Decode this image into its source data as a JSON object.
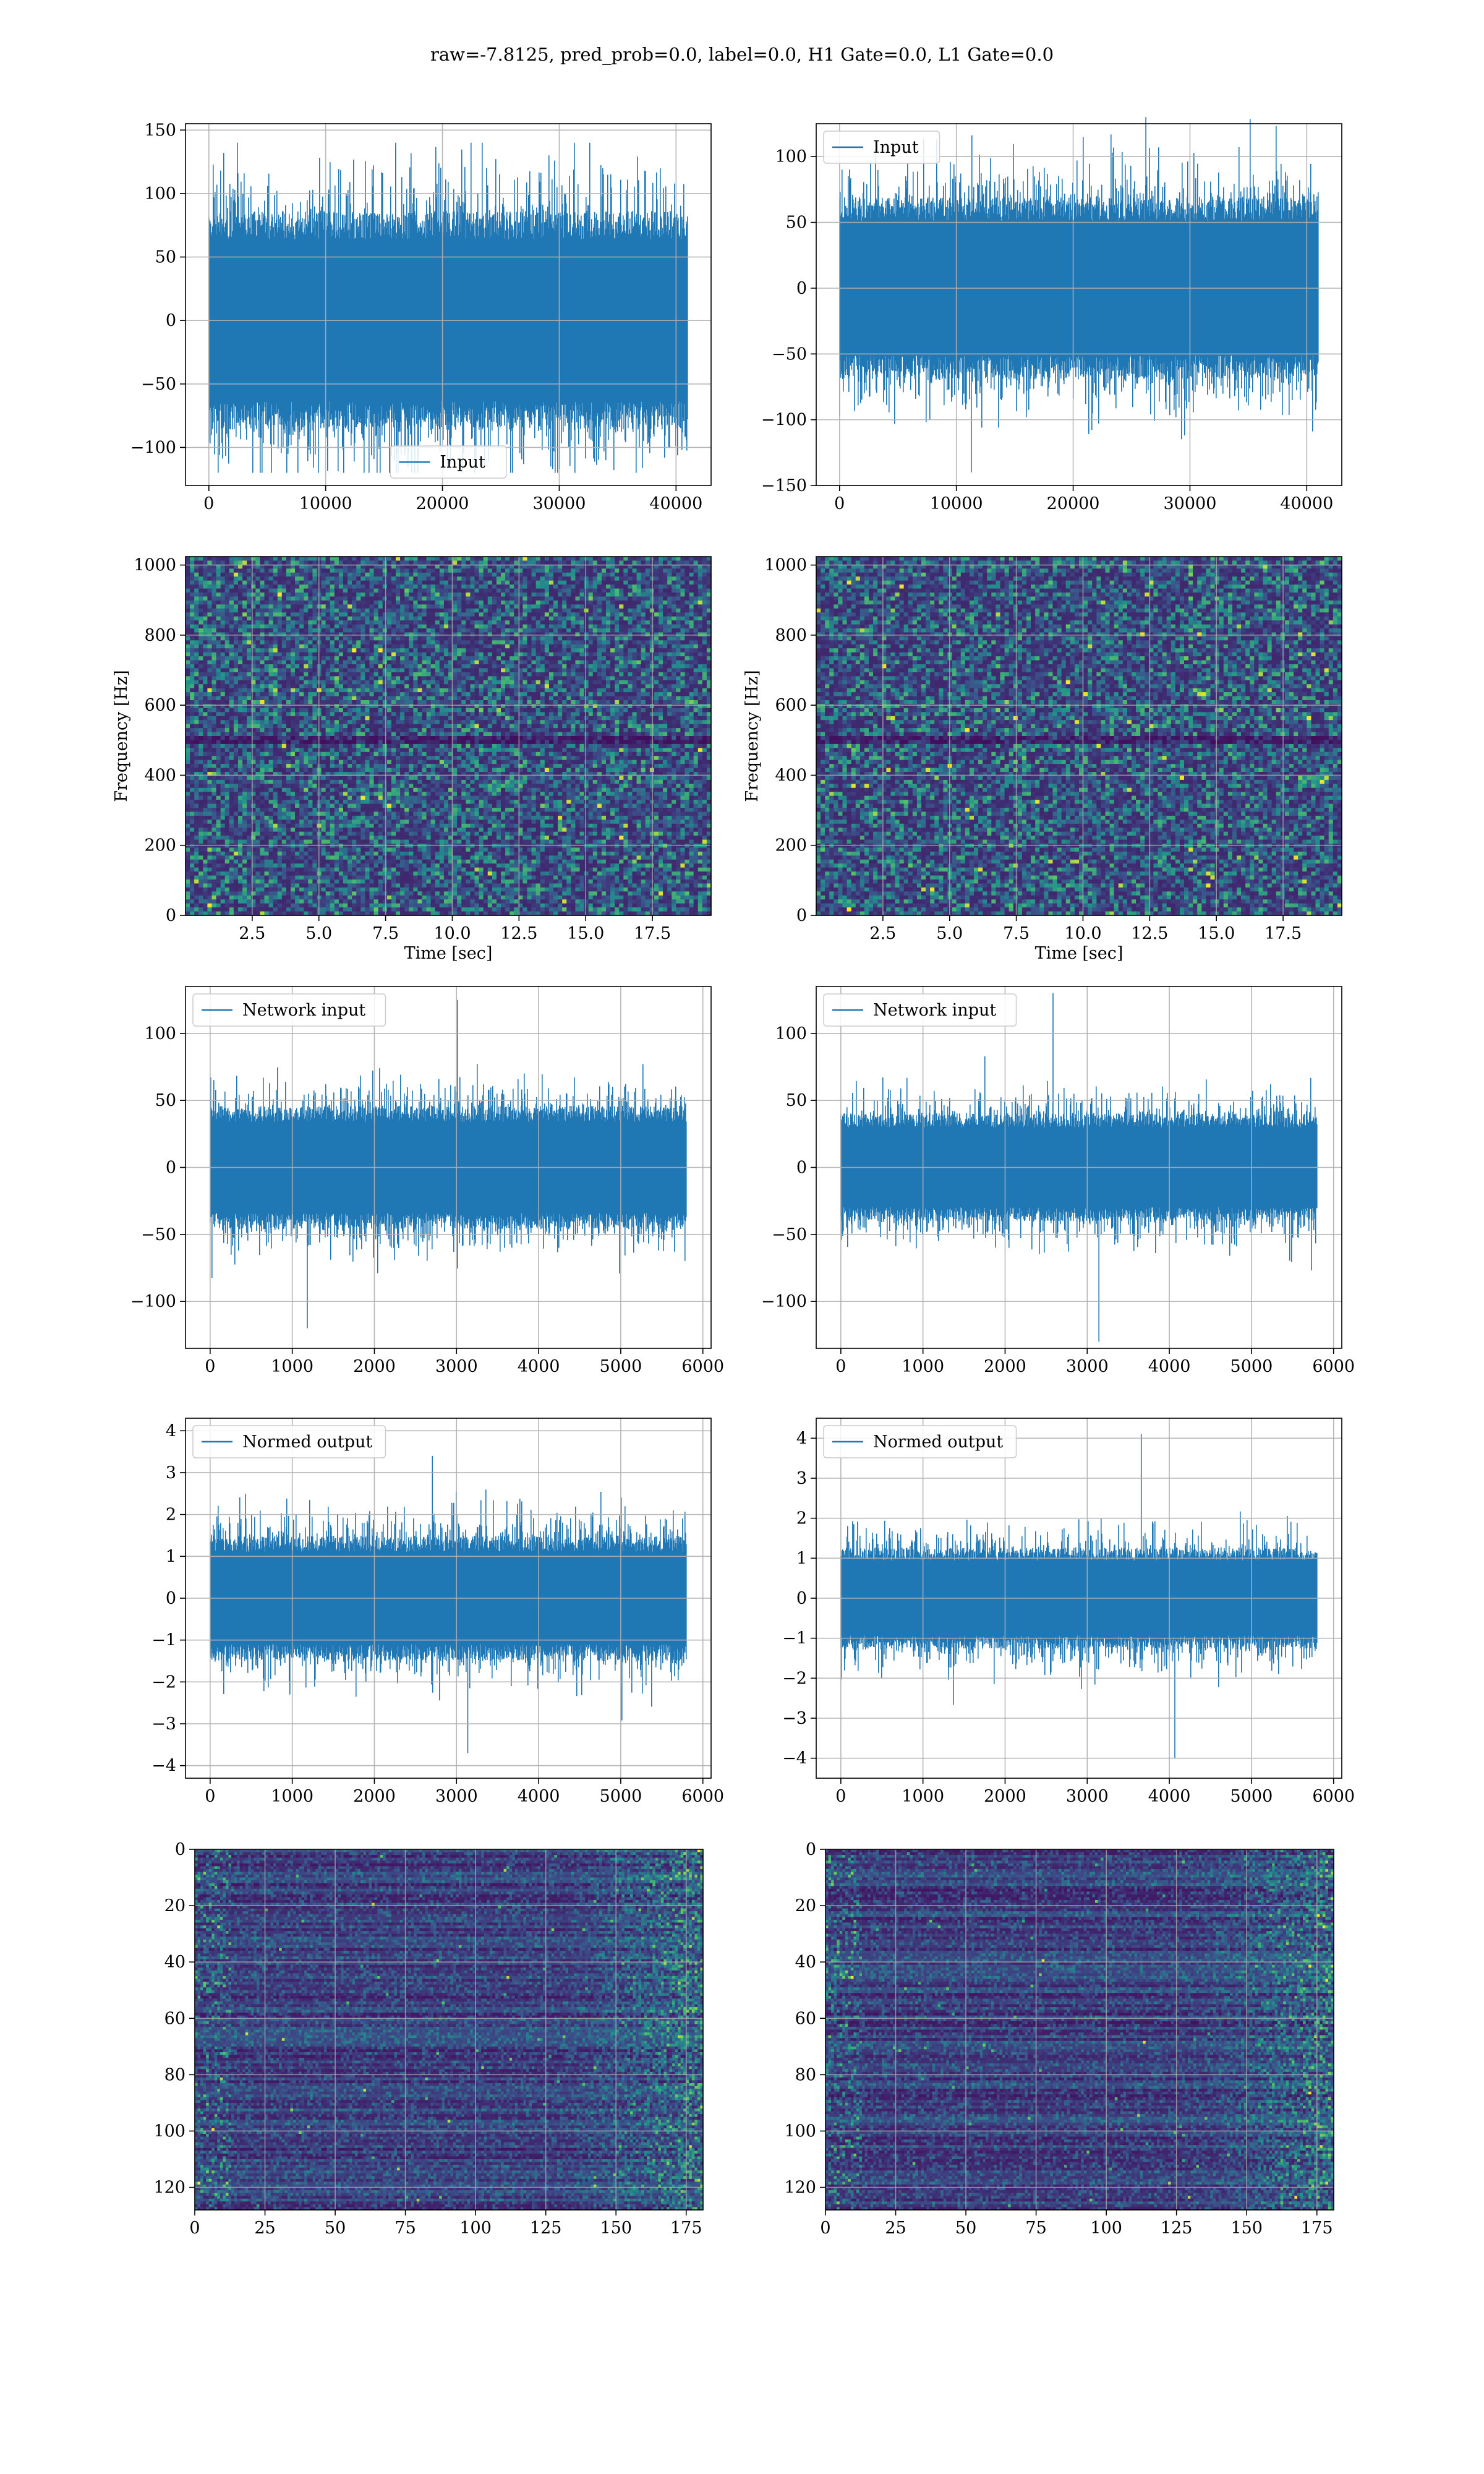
{
  "figure": {
    "suptitle": "raw=-7.8125, pred_prob=0.0, label=0.0, H1 Gate=0.0, L1 Gate=0.0"
  },
  "colors": {
    "line": "#1f77b4",
    "grid": "#b0b0b0",
    "viridis": [
      "#440154",
      "#3b528b",
      "#21918c",
      "#5ec962",
      "#fde725"
    ]
  },
  "chart_data": [
    {
      "id": "h1-input",
      "type": "line",
      "xlim": [
        -2000,
        43000
      ],
      "ylim": [
        -130,
        155
      ],
      "xticks": [
        0,
        10000,
        20000,
        30000,
        40000
      ],
      "yticks": [
        -100,
        -50,
        0,
        50,
        100,
        150
      ],
      "legend": "Input",
      "legend_loc": "lower center",
      "n_points": 40960,
      "envelope_abs": 75,
      "peak_max": 140,
      "peak_min": -120,
      "xlabel": "",
      "ylabel": ""
    },
    {
      "id": "l1-input",
      "type": "line",
      "xlim": [
        -2000,
        43000
      ],
      "ylim": [
        -150,
        125
      ],
      "xticks": [
        0,
        10000,
        20000,
        30000,
        40000
      ],
      "yticks": [
        -150,
        -100,
        -50,
        0,
        50,
        100
      ],
      "legend": "Input",
      "legend_loc": "upper left",
      "n_points": 40960,
      "envelope_abs": 60,
      "peak_max": 130,
      "peak_min": -140,
      "xlabel": "",
      "ylabel": ""
    },
    {
      "id": "h1-spectrogram",
      "type": "heatmap",
      "xlim": [
        0,
        19.7
      ],
      "ylim": [
        0,
        1024
      ],
      "xticks": [
        2.5,
        5.0,
        7.5,
        10.0,
        12.5,
        15.0,
        17.5
      ],
      "xtick_labels": [
        "2.5",
        "5.0",
        "7.5",
        "10.0",
        "12.5",
        "15.0",
        "17.5"
      ],
      "yticks": [
        0,
        200,
        400,
        600,
        800,
        1000
      ],
      "xlabel": "Time [sec]",
      "ylabel": "Frequency [Hz]",
      "colormap": "viridis",
      "nx": 120,
      "ny": 90
    },
    {
      "id": "l1-spectrogram",
      "type": "heatmap",
      "xlim": [
        0,
        19.7
      ],
      "ylim": [
        0,
        1024
      ],
      "xticks": [
        2.5,
        5.0,
        7.5,
        10.0,
        12.5,
        15.0,
        17.5
      ],
      "xtick_labels": [
        "2.5",
        "5.0",
        "7.5",
        "10.0",
        "12.5",
        "15.0",
        "17.5"
      ],
      "yticks": [
        0,
        200,
        400,
        600,
        800,
        1000
      ],
      "xlabel": "Time [sec]",
      "ylabel": "Frequency [Hz]",
      "colormap": "viridis",
      "nx": 120,
      "ny": 90
    },
    {
      "id": "h1-network-input",
      "type": "line",
      "xlim": [
        -300,
        6100
      ],
      "ylim": [
        -135,
        135
      ],
      "xticks": [
        0,
        1000,
        2000,
        3000,
        4000,
        5000,
        6000
      ],
      "yticks": [
        -100,
        -50,
        0,
        50,
        100
      ],
      "legend": "Network input",
      "legend_loc": "upper left",
      "n_points": 5800,
      "envelope_abs": 40,
      "peak_max": 125,
      "peak_min": -120,
      "xlabel": "",
      "ylabel": ""
    },
    {
      "id": "l1-network-input",
      "type": "line",
      "xlim": [
        -300,
        6100
      ],
      "ylim": [
        -135,
        135
      ],
      "xticks": [
        0,
        1000,
        2000,
        3000,
        4000,
        5000,
        6000
      ],
      "yticks": [
        -100,
        -50,
        0,
        50,
        100
      ],
      "legend": "Network input",
      "legend_loc": "upper left",
      "n_points": 5800,
      "envelope_abs": 35,
      "peak_max": 130,
      "peak_min": -130,
      "xlabel": "",
      "ylabel": ""
    },
    {
      "id": "h1-normed-output",
      "type": "line",
      "xlim": [
        -300,
        6100
      ],
      "ylim": [
        -4.3,
        4.3
      ],
      "xticks": [
        0,
        1000,
        2000,
        3000,
        4000,
        5000,
        6000
      ],
      "yticks": [
        -4,
        -3,
        -2,
        -1,
        0,
        1,
        2,
        3,
        4
      ],
      "ytick_labels": [
        "−4",
        "−3",
        "−2",
        "−1",
        "0",
        "1",
        "2",
        "3",
        "4"
      ],
      "legend": "Normed output",
      "legend_loc": "upper left",
      "n_points": 5800,
      "envelope_abs": 1.3,
      "peak_max": 3.4,
      "peak_min": -3.7,
      "xlabel": "",
      "ylabel": ""
    },
    {
      "id": "l1-normed-output",
      "type": "line",
      "xlim": [
        -300,
        6100
      ],
      "ylim": [
        -4.5,
        4.5
      ],
      "xticks": [
        0,
        1000,
        2000,
        3000,
        4000,
        5000,
        6000
      ],
      "yticks": [
        -4,
        -3,
        -2,
        -1,
        0,
        1,
        2,
        3,
        4
      ],
      "ytick_labels": [
        "−4",
        "−3",
        "−2",
        "−1",
        "0",
        "1",
        "2",
        "3",
        "4"
      ],
      "legend": "Normed output",
      "legend_loc": "upper left",
      "n_points": 5800,
      "envelope_abs": 1.1,
      "peak_max": 4.1,
      "peak_min": -4.0,
      "xlabel": "",
      "ylabel": ""
    },
    {
      "id": "h1-feature-map",
      "type": "heatmap",
      "xlim": [
        0,
        181
      ],
      "ylim": [
        128,
        0
      ],
      "xticks": [
        0,
        25,
        50,
        75,
        100,
        125,
        150,
        175
      ],
      "yticks": [
        0,
        20,
        40,
        60,
        80,
        100,
        120
      ],
      "xlabel": "",
      "ylabel": "",
      "colormap": "viridis",
      "nx": 181,
      "ny": 128
    },
    {
      "id": "l1-feature-map",
      "type": "heatmap",
      "xlim": [
        0,
        181
      ],
      "ylim": [
        128,
        0
      ],
      "xticks": [
        0,
        25,
        50,
        75,
        100,
        125,
        150,
        175
      ],
      "yticks": [
        0,
        20,
        40,
        60,
        80,
        100,
        120
      ],
      "xlabel": "",
      "ylabel": "",
      "colormap": "viridis",
      "nx": 181,
      "ny": 128
    }
  ]
}
